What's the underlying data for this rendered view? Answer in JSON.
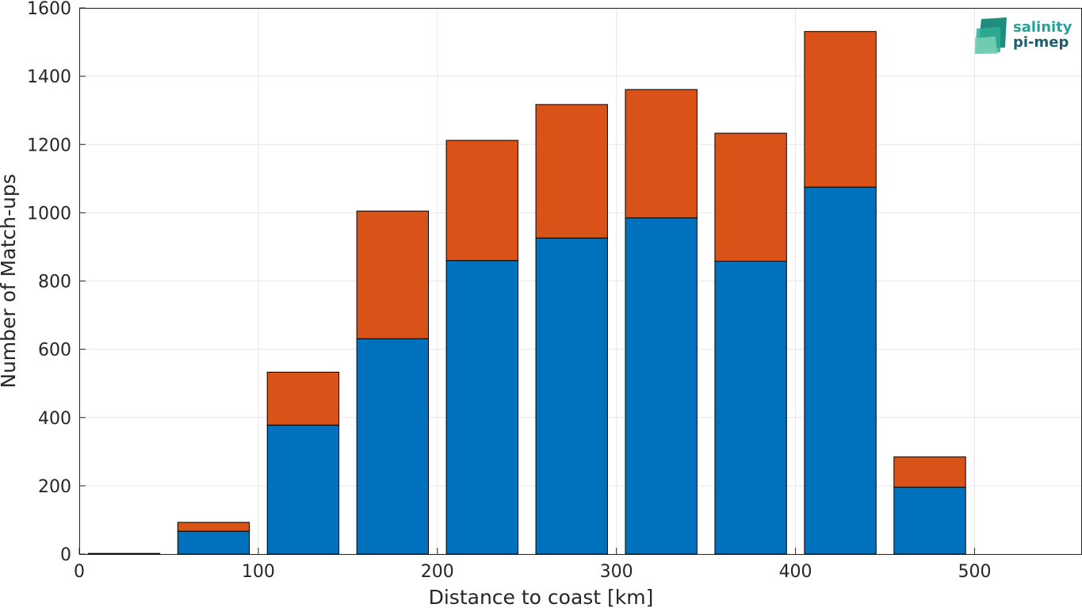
{
  "chart_data": {
    "type": "bar",
    "stacked": true,
    "x": [
      25,
      75,
      125,
      175,
      225,
      275,
      325,
      375,
      425,
      475
    ],
    "bar_width": 40,
    "series": [
      {
        "values": [
          2,
          67,
          378,
          631,
          860,
          926,
          985,
          858,
          1075,
          196
        ]
      },
      {
        "values": [
          0,
          26,
          155,
          374,
          352,
          391,
          376,
          375,
          456,
          89
        ]
      }
    ],
    "xlabel": "Distance to coast [km]",
    "ylabel": "Number of Match-ups",
    "xlim": [
      0,
      560
    ],
    "ylim": [
      0,
      1600
    ],
    "xticks": [
      0,
      100,
      200,
      300,
      400,
      500
    ],
    "yticks": [
      0,
      200,
      400,
      600,
      800,
      1000,
      1200,
      1400,
      1600
    ],
    "grid": true,
    "colors": {
      "series": [
        "#0072BD",
        "#D95319"
      ],
      "grid": "#e6e6e6",
      "axis": "#262626"
    }
  },
  "logo": {
    "line1": "salinity",
    "line2": "pi-mep",
    "color1": "#2aa198",
    "color2": "#1c5f6b"
  }
}
